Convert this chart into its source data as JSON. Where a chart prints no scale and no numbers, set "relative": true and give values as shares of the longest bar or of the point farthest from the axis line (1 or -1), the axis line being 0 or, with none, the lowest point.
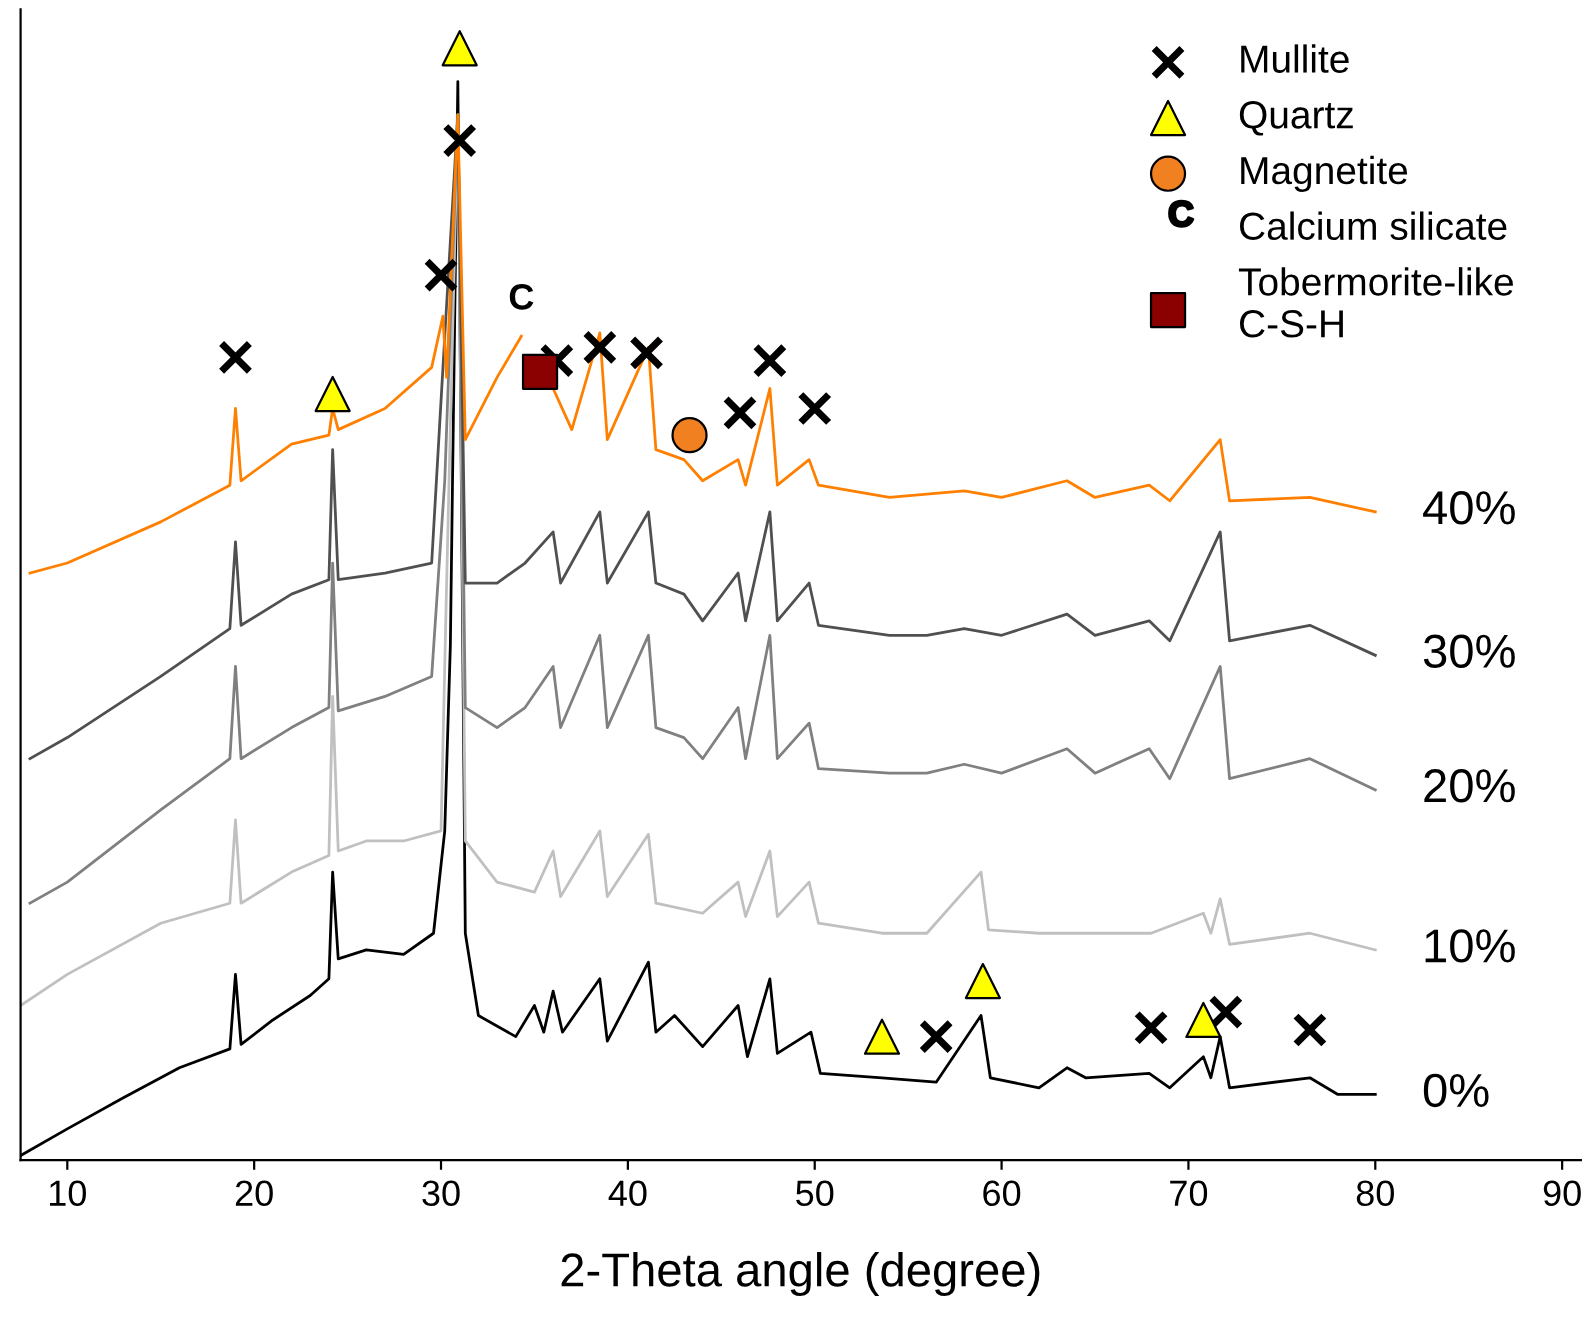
{
  "chart_data": {
    "type": "line",
    "annotations": [
      {
        "text": "C",
        "x": 34.3,
        "y": 0.741
      }
    ],
    "relative": true,
    "xlabel": "2-Theta angle (degree)",
    "xlim": [
      7.5,
      91
    ],
    "xticks": [
      10,
      20,
      30,
      40,
      50,
      60,
      70,
      80,
      90
    ],
    "grid": false,
    "legend": "top right",
    "marker": "none",
    "line_style": "solid",
    "series": [
      {
        "name": "0%",
        "color": "#000000",
        "x": [
          7.5,
          10,
          13,
          16,
          18.7,
          19,
          19.3,
          21,
          23,
          24,
          24.2,
          24.5,
          26,
          28,
          29.6,
          30.2,
          30.5,
          30.9,
          31.3,
          32,
          34,
          35,
          35.5,
          36,
          36.5,
          38.5,
          38.9,
          41.1,
          41.5,
          42.5,
          44,
          45.9,
          46.4,
          47.6,
          48,
          49.8,
          50.3,
          53.6,
          56.5,
          58.9,
          59.4,
          62,
          63.5,
          64.5,
          67.9,
          69,
          70.8,
          71.2,
          71.7,
          72.2,
          76.5,
          78,
          80
        ],
        "values": [
          0.004,
          0.028,
          0.056,
          0.083,
          0.1,
          0.167,
          0.104,
          0.126,
          0.148,
          0.163,
          0.259,
          0.181,
          0.189,
          0.185,
          0.204,
          0.296,
          0.463,
          0.97,
          0.204,
          0.13,
          0.111,
          0.139,
          0.115,
          0.152,
          0.115,
          0.163,
          0.107,
          0.178,
          0.115,
          0.13,
          0.102,
          0.139,
          0.093,
          0.163,
          0.096,
          0.115,
          0.078,
          0.074,
          0.07,
          0.13,
          0.074,
          0.065,
          0.083,
          0.074,
          0.078,
          0.065,
          0.093,
          0.074,
          0.111,
          0.065,
          0.074,
          0.059,
          0.059
        ]
      },
      {
        "name": "10%",
        "color": "#c0c0c0",
        "x": [
          7.5,
          10,
          15,
          18.7,
          19,
          19.3,
          22,
          24,
          24.2,
          24.5,
          26,
          28,
          30,
          30.3,
          30.9,
          31.3,
          33,
          35,
          36,
          36.4,
          38.5,
          38.9,
          41.1,
          41.5,
          44,
          45.9,
          46.3,
          47.6,
          48,
          49.7,
          50.2,
          53.6,
          56,
          58.9,
          59.3,
          62,
          64,
          68,
          70.8,
          71.2,
          71.7,
          72.2,
          76.5,
          80
        ],
        "values": [
          0.139,
          0.167,
          0.213,
          0.231,
          0.306,
          0.231,
          0.259,
          0.274,
          0.417,
          0.278,
          0.287,
          0.287,
          0.296,
          0.519,
          0.94,
          0.287,
          0.25,
          0.241,
          0.278,
          0.237,
          0.296,
          0.237,
          0.293,
          0.231,
          0.222,
          0.25,
          0.219,
          0.278,
          0.219,
          0.25,
          0.213,
          0.204,
          0.204,
          0.259,
          0.207,
          0.204,
          0.204,
          0.204,
          0.222,
          0.204,
          0.235,
          0.194,
          0.204,
          0.189
        ]
      },
      {
        "name": "20%",
        "color": "#808080",
        "x": [
          8,
          10,
          15,
          18.7,
          19,
          19.3,
          22,
          24,
          24.2,
          24.5,
          27,
          29.5,
          30.2,
          30.9,
          31.3,
          33,
          34.5,
          36,
          36.4,
          38.5,
          38.9,
          41.1,
          41.5,
          43,
          44,
          45.9,
          46.3,
          47.6,
          48,
          49.7,
          50.2,
          54,
          56,
          58,
          60,
          63.5,
          65,
          67.9,
          69,
          71.7,
          72.2,
          76.5,
          80
        ],
        "values": [
          0.231,
          0.25,
          0.315,
          0.361,
          0.444,
          0.361,
          0.389,
          0.407,
          0.537,
          0.404,
          0.417,
          0.435,
          0.611,
          0.94,
          0.407,
          0.389,
          0.407,
          0.444,
          0.389,
          0.472,
          0.389,
          0.472,
          0.389,
          0.38,
          0.361,
          0.407,
          0.361,
          0.472,
          0.361,
          0.393,
          0.352,
          0.348,
          0.348,
          0.356,
          0.348,
          0.37,
          0.348,
          0.37,
          0.343,
          0.444,
          0.343,
          0.361,
          0.333
        ]
      },
      {
        "name": "30%",
        "color": "#505050",
        "x": [
          8,
          10,
          15,
          18.7,
          19,
          19.3,
          22,
          24,
          24.2,
          24.5,
          27,
          29.5,
          30.2,
          30.9,
          31.3,
          33,
          34.5,
          36,
          36.4,
          38.5,
          38.9,
          41.1,
          41.5,
          43,
          44,
          45.9,
          46.3,
          47.6,
          48,
          49.7,
          50.2,
          54,
          56,
          58,
          60,
          63.5,
          65,
          67.9,
          69,
          71.7,
          72.2,
          76.5,
          80
        ],
        "values": [
          0.361,
          0.38,
          0.435,
          0.478,
          0.556,
          0.481,
          0.509,
          0.522,
          0.639,
          0.522,
          0.528,
          0.537,
          0.741,
          0.94,
          0.519,
          0.519,
          0.537,
          0.565,
          0.519,
          0.583,
          0.519,
          0.583,
          0.519,
          0.509,
          0.485,
          0.528,
          0.485,
          0.583,
          0.485,
          0.519,
          0.481,
          0.472,
          0.472,
          0.478,
          0.472,
          0.491,
          0.472,
          0.485,
          0.467,
          0.565,
          0.467,
          0.481,
          0.454
        ]
      },
      {
        "name": "40%",
        "color": "#ff8000",
        "x": [
          8,
          10,
          15,
          18.7,
          19,
          19.3,
          22,
          24,
          24.2,
          24.5,
          27,
          29.5,
          30.1,
          30.3,
          30.9,
          31.3,
          33,
          34.3,
          35.5,
          36,
          37,
          38.5,
          38.9,
          41.1,
          41.5,
          43,
          44,
          45.9,
          46.3,
          47.6,
          48,
          49.7,
          50.2,
          54,
          58,
          60,
          63.5,
          65,
          67.9,
          69,
          71.7,
          72.2,
          76.5,
          80
        ],
        "values": [
          0.528,
          0.537,
          0.574,
          0.607,
          0.676,
          0.611,
          0.644,
          0.652,
          0.676,
          0.657,
          0.676,
          0.713,
          0.759,
          0.704,
          0.94,
          0.648,
          0.704,
          0.741,
          null,
          0.694,
          0.657,
          0.744,
          0.648,
          0.731,
          0.639,
          0.63,
          0.611,
          0.63,
          0.607,
          0.694,
          0.607,
          0.63,
          0.607,
          0.596,
          0.602,
          0.596,
          0.611,
          0.596,
          0.607,
          0.593,
          0.648,
          0.593,
          0.596,
          0.583
        ]
      },
      {
        "type": "scatter",
        "name": "Mullite",
        "marker": "cross",
        "color": "#000000",
        "x": [
          19,
          30,
          31,
          36.2,
          38.5,
          41,
          46,
          47.6,
          50,
          56.5,
          68,
          72,
          76.5
        ],
        "values": [
          0.722,
          0.796,
          0.917,
          0.719,
          0.731,
          0.726,
          0.672,
          0.719,
          0.676,
          0.111,
          0.119,
          0.133,
          0.117
        ]
      },
      {
        "type": "scatter",
        "name": "Quartz",
        "marker": "triangle",
        "color": "#ffff00",
        "x": [
          24.2,
          31,
          53.6,
          59,
          70.8
        ],
        "values": [
          0.689,
          1.0,
          0.111,
          0.161,
          0.126
        ]
      },
      {
        "type": "scatter",
        "name": "Magnetite",
        "marker": "circle",
        "color": "#f08020",
        "x": [
          43.3
        ],
        "values": [
          0.652
        ]
      },
      {
        "type": "scatter",
        "name": "Calcium silicate",
        "marker": "none",
        "color": "#000000"
      },
      {
        "type": "scatter",
        "name": "Tobermorite-like\nC-S-H",
        "marker": "square",
        "color": "#8b0000",
        "x": [
          35.3
        ],
        "values": [
          0.709
        ]
      }
    ]
  }
}
